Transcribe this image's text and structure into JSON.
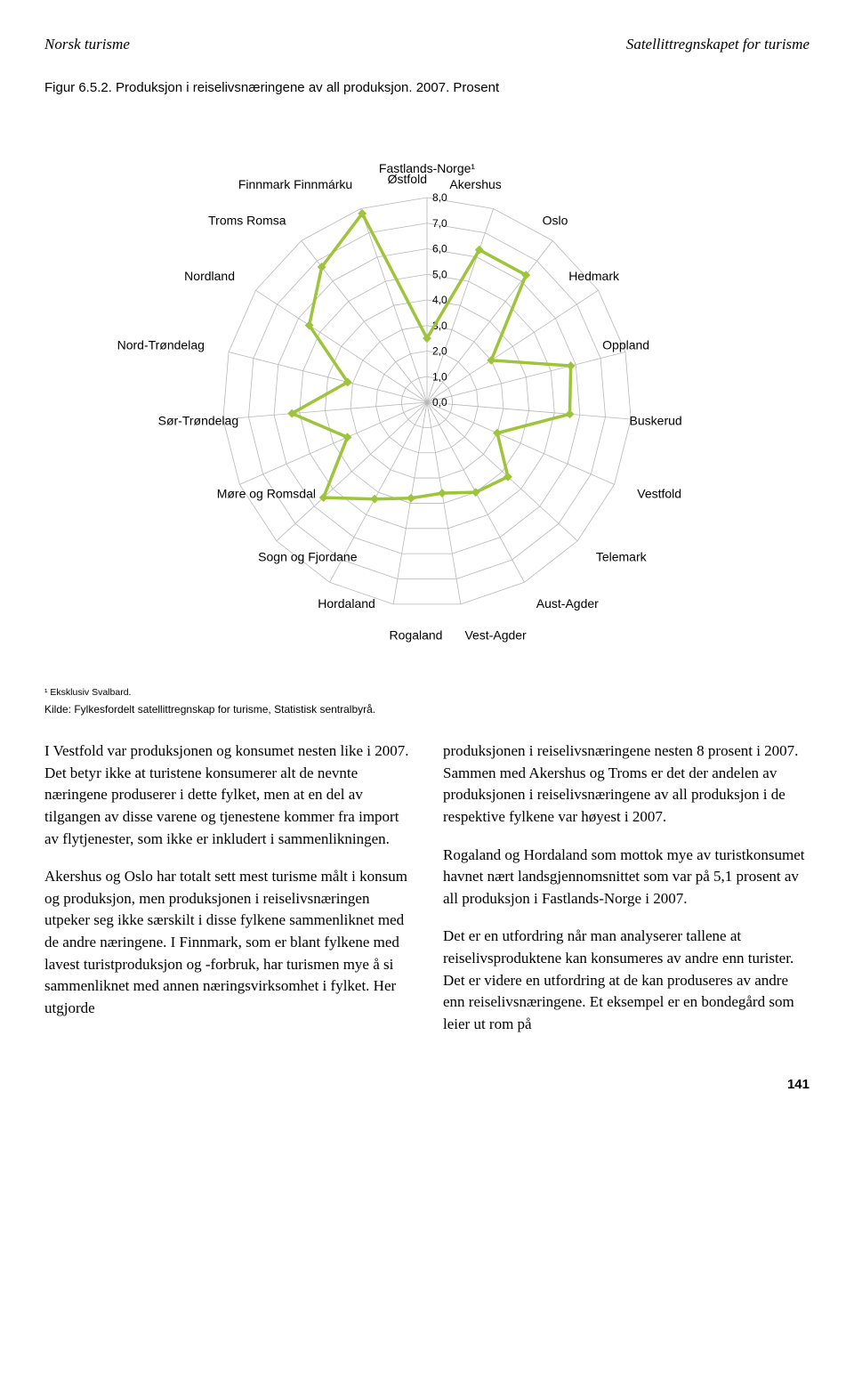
{
  "header": {
    "left": "Norsk turisme",
    "right": "Satellittregnskapet for turisme"
  },
  "figure": {
    "title": "Figur 6.5.2. Produksjon i reiselivsnæringene av all produksjon. 2007. Prosent",
    "footnote": "¹ Eksklusiv Svalbard.",
    "source": "Kilde: Fylkesfordelt satellittregnskap for turisme, Statistisk sentralbyrå."
  },
  "chart": {
    "type": "radar",
    "center_label": "Fastlands-Norge¹",
    "categories": [
      "Østfold",
      "Akershus",
      "Oslo",
      "Hedmark",
      "Oppland",
      "Buskerud",
      "Vestfold",
      "Telemark",
      "Aust-Agder",
      "Vest-Agder",
      "Rogaland",
      "Hordaland",
      "Sogn og Fjordane",
      "Møre og Romsdal",
      "Sør-Trøndelag",
      "Nord-Trøndelag",
      "Nordland",
      "Troms Romsa",
      "Finnmark Finnmárku"
    ],
    "values": [
      2.5,
      6.3,
      6.3,
      3.0,
      5.8,
      5.6,
      3.0,
      4.3,
      4.0,
      3.6,
      3.8,
      4.3,
      5.5,
      3.4,
      5.3,
      3.2,
      5.5,
      6.7,
      7.8
    ],
    "ticks": [
      0.0,
      1.0,
      2.0,
      3.0,
      4.0,
      5.0,
      6.0,
      7.0,
      8.0
    ],
    "tick_labels": [
      "0,0",
      "1,0",
      "2,0",
      "3,0",
      "4,0",
      "5,0",
      "6,0",
      "7,0",
      "8,0"
    ],
    "max": 8.0,
    "grid_color": "#b8b8b8",
    "line_color": "#9dc43a",
    "line_width": 3.5,
    "marker_color": "#9dc43a",
    "marker_size": 7,
    "background_color": "#ffffff",
    "label_fontsize": 14,
    "tick_fontsize": 12
  },
  "body": {
    "col1": {
      "p1": "I Vestfold var produksjonen og konsumet nesten like i 2007. Det betyr ikke at turistene konsumerer alt de nevnte næringene produserer i dette fylket, men at en del av tilgangen av disse varene og tjenestene kommer fra import av flytjenester, som ikke er inkludert i sammenlikningen.",
      "p2": "Akershus og Oslo har totalt sett mest turisme målt i konsum og produksjon, men produksjonen i reiselivsnæringen utpeker seg ikke særskilt i disse fylkene sammenliknet med de andre næringene. I Finnmark, som er blant fylkene med lavest turistproduksjon og -forbruk, har turismen mye å si sammenliknet med annen næringsvirksomhet i fylket. Her utgjorde"
    },
    "col2": {
      "p1": "produksjonen i reiselivsnæringene nesten 8 prosent i 2007. Sammen med Akershus og Troms er det der andelen av produksjonen i reiselivsnæringene av all produksjon i de respektive fylkene var høyest i 2007.",
      "p2": "Rogaland og Hordaland som mottok mye av turistkonsumet havnet nært landsgjennomsnittet som var på 5,1 prosent av all produksjon i Fastlands-Norge i 2007.",
      "p3": "Det er en utfordring når man analyserer tallene at reiselivsproduktene kan konsumeres av andre enn turister. Det er videre en utfordring at de kan produseres av andre enn reiselivsnæringene. Et eksempel er en bondegård som leier ut rom på"
    }
  },
  "page_number": "141"
}
